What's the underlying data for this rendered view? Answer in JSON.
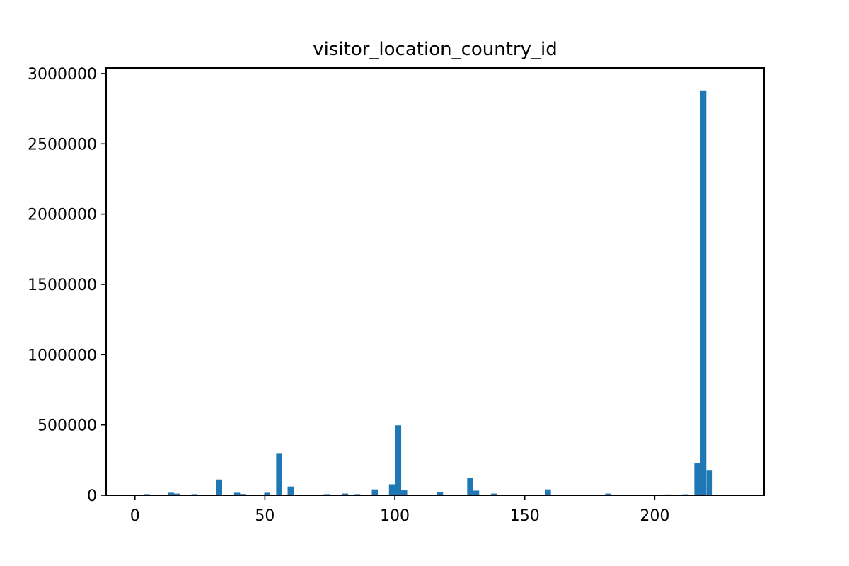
{
  "chart_data": {
    "type": "bar",
    "title": "visitor_location_country_id",
    "xlabel": "",
    "ylabel": "",
    "xlim": [
      -11.1,
      242.1
    ],
    "ylim": [
      0,
      3040000
    ],
    "x_ticks": [
      0,
      50,
      100,
      150,
      200
    ],
    "x_tick_labels": [
      "0",
      "50",
      "100",
      "150",
      "200"
    ],
    "y_ticks": [
      0,
      500000,
      1000000,
      1500000,
      2000000,
      2500000,
      3000000
    ],
    "y_tick_labels": [
      "0",
      "500000",
      "1000000",
      "1500000",
      "2000000",
      "2500000",
      "3000000"
    ],
    "grid": false,
    "bar_color": "#1f77b4",
    "bin_width": 2.31,
    "bins": [
      {
        "x": 4.6,
        "value": 8000
      },
      {
        "x": 13.9,
        "value": 18000
      },
      {
        "x": 16.2,
        "value": 12000
      },
      {
        "x": 22.9,
        "value": 8000
      },
      {
        "x": 32.4,
        "value": 112000
      },
      {
        "x": 39.3,
        "value": 18000
      },
      {
        "x": 41.6,
        "value": 9000
      },
      {
        "x": 50.9,
        "value": 18000
      },
      {
        "x": 55.5,
        "value": 300000
      },
      {
        "x": 59.9,
        "value": 62000
      },
      {
        "x": 73.8,
        "value": 8000
      },
      {
        "x": 80.9,
        "value": 12000
      },
      {
        "x": 85.6,
        "value": 8000
      },
      {
        "x": 92.3,
        "value": 42000
      },
      {
        "x": 98.9,
        "value": 78000
      },
      {
        "x": 101.3,
        "value": 497000
      },
      {
        "x": 103.6,
        "value": 35000
      },
      {
        "x": 117.4,
        "value": 22000
      },
      {
        "x": 129.0,
        "value": 124000
      },
      {
        "x": 131.3,
        "value": 33000
      },
      {
        "x": 138.2,
        "value": 12000
      },
      {
        "x": 158.9,
        "value": 42000
      },
      {
        "x": 182.1,
        "value": 12000
      },
      {
        "x": 205.2,
        "value": 6000
      },
      {
        "x": 211.8,
        "value": 7000
      },
      {
        "x": 216.4,
        "value": 228000
      },
      {
        "x": 218.7,
        "value": 2880000
      },
      {
        "x": 221.1,
        "value": 175000
      }
    ]
  }
}
